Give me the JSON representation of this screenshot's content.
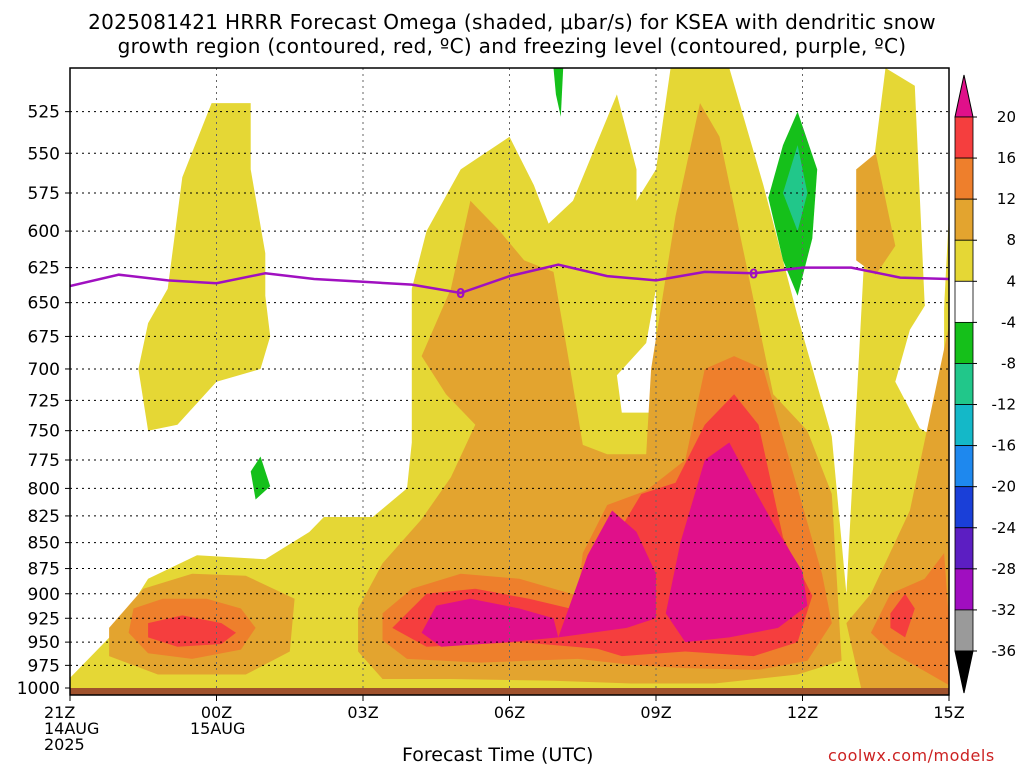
{
  "title": {
    "line1": "2025081421 HRRR Forecast Omega (shaded, μbar/s) for KSEA with dendritic snow",
    "line2": "growth region (contoured, red, ºC) and freezing level (contoured, purple, ºC)"
  },
  "xlabel": "Forecast Time (UTC)",
  "credit": "coolwx.com/models",
  "chart_data": {
    "type": "heatmap",
    "title": "2025081421 HRRR Forecast Omega (shaded, μbar/s) for KSEA with dendritic snow growth region (contoured, red, ºC) and freezing level (contoured, purple, ºC)",
    "xlabel": "Forecast Time (UTC)",
    "ylabel": "",
    "x_ticks": [
      {
        "hour": 0,
        "label": [
          "21Z",
          "14AUG",
          "2025"
        ]
      },
      {
        "hour": 3,
        "label": [
          "00Z",
          "15AUG"
        ]
      },
      {
        "hour": 6,
        "label": [
          "03Z"
        ]
      },
      {
        "hour": 9,
        "label": [
          "06Z"
        ]
      },
      {
        "hour": 12,
        "label": [
          "09Z"
        ]
      },
      {
        "hour": 15,
        "label": [
          "12Z"
        ]
      },
      {
        "hour": 18,
        "label": [
          "15Z"
        ]
      }
    ],
    "xlim_hours": [
      0,
      18
    ],
    "y_levels_hpa": [
      525,
      550,
      575,
      600,
      625,
      650,
      675,
      700,
      725,
      750,
      775,
      800,
      825,
      850,
      875,
      900,
      925,
      950,
      975,
      1000
    ],
    "ylim_hpa": [
      500,
      1000
    ],
    "y_scale": "log-pressure (inverted, top = low pressure)",
    "grid": true,
    "colorbar": {
      "labels": [
        "20",
        "16",
        "12",
        "8",
        "4",
        "-4",
        "-8",
        "-12",
        "-16",
        "-20",
        "-24",
        "-28",
        "-32",
        "-36"
      ],
      "bins": [
        {
          "range": [
            20,
            null
          ],
          "color": "#e0108a"
        },
        {
          "range": [
            16,
            20
          ],
          "color": "#f53e3e"
        },
        {
          "range": [
            12,
            16
          ],
          "color": "#ee7f2c"
        },
        {
          "range": [
            8,
            12
          ],
          "color": "#e3a42f"
        },
        {
          "range": [
            4,
            8
          ],
          "color": "#e5d735"
        },
        {
          "range": [
            -4,
            4
          ],
          "color": "#ffffff"
        },
        {
          "range": [
            -8,
            -4
          ],
          "color": "#15c01a"
        },
        {
          "range": [
            -12,
            -8
          ],
          "color": "#21c78a"
        },
        {
          "range": [
            -16,
            -12
          ],
          "color": "#14b8c8"
        },
        {
          "range": [
            -20,
            -16
          ],
          "color": "#1e88ee"
        },
        {
          "range": [
            -24,
            -20
          ],
          "color": "#1a3fd8"
        },
        {
          "range": [
            -28,
            -24
          ],
          "color": "#5c1ec2"
        },
        {
          "range": [
            -32,
            -28
          ],
          "color": "#a00ec0"
        },
        {
          "range": [
            -36,
            -32
          ],
          "color": "#9a9a9a"
        },
        {
          "range": [
            null,
            -36
          ],
          "color": "#000000"
        }
      ]
    },
    "freezing_level": {
      "label": "0",
      "color": "#a010c0",
      "points": [
        {
          "hour": 0,
          "hpa": 638
        },
        {
          "hour": 1,
          "hpa": 630
        },
        {
          "hour": 2,
          "hpa": 634
        },
        {
          "hour": 3,
          "hpa": 636
        },
        {
          "hour": 4,
          "hpa": 629
        },
        {
          "hour": 5,
          "hpa": 633
        },
        {
          "hour": 6,
          "hpa": 635
        },
        {
          "hour": 7,
          "hpa": 637
        },
        {
          "hour": 8,
          "hpa": 643
        },
        {
          "hour": 9,
          "hpa": 631
        },
        {
          "hour": 10,
          "hpa": 623
        },
        {
          "hour": 11,
          "hpa": 631
        },
        {
          "hour": 12,
          "hpa": 634
        },
        {
          "hour": 13,
          "hpa": 628
        },
        {
          "hour": 14,
          "hpa": 629
        },
        {
          "hour": 15,
          "hpa": 625
        },
        {
          "hour": 16,
          "hpa": 625
        },
        {
          "hour": 17,
          "hpa": 632
        },
        {
          "hour": 18,
          "hpa": 633
        }
      ],
      "label_positions": [
        {
          "hour": 8,
          "hpa": 643
        },
        {
          "hour": 14,
          "hpa": 629
        }
      ]
    },
    "surface_color": "#a0522d"
  }
}
